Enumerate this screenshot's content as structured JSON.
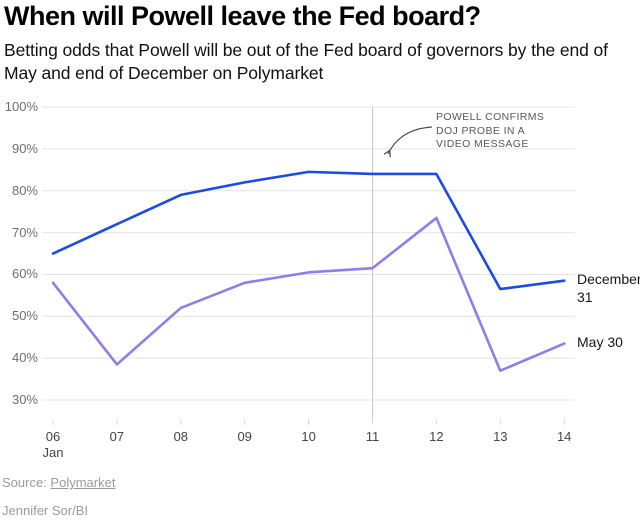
{
  "header": {
    "title": "When will Powell leave the Fed board?",
    "subtitle": "Betting odds that Powell will be out of the Fed board of governors by the end of May and end of December on Polymarket"
  },
  "footer": {
    "source_prefix": "Source: ",
    "source_link": "Polymarket",
    "byline": "Jennifer Sor/BI"
  },
  "chart_data": {
    "type": "line",
    "categories": [
      "06",
      "07",
      "08",
      "09",
      "10",
      "11",
      "12",
      "13",
      "14"
    ],
    "x_sub_label": {
      "index": 0,
      "text": "Jan"
    },
    "series": [
      {
        "name": "December 31",
        "color": "#1c4be1",
        "values": [
          65,
          72,
          79,
          82,
          84.5,
          84,
          84,
          56.5,
          58.5
        ]
      },
      {
        "name": "May 30",
        "color": "#8e7ee9",
        "values": [
          58,
          38.5,
          52,
          58,
          60.5,
          61.5,
          73.5,
          37,
          43.5
        ]
      }
    ],
    "ylabel": "",
    "xlabel": "",
    "ylim": [
      30,
      100
    ],
    "y_ticks": [
      100,
      90,
      80,
      70,
      60,
      50,
      40,
      30
    ],
    "y_tick_suffix": "%",
    "grid": true,
    "legend_position": "right-end-labels",
    "ref_line_category_index": 5,
    "annotation": {
      "lines": [
        "POWELL CONFIRMS",
        "DOJ PROBE IN A",
        "VIDEO MESSAGE"
      ],
      "points_to_category": "11"
    },
    "colors": {
      "gridline": "#e4e4e4",
      "ref_line": "#c9c9c9",
      "tick": "#d8d8d8",
      "arrow": "#4a4a4a"
    }
  }
}
